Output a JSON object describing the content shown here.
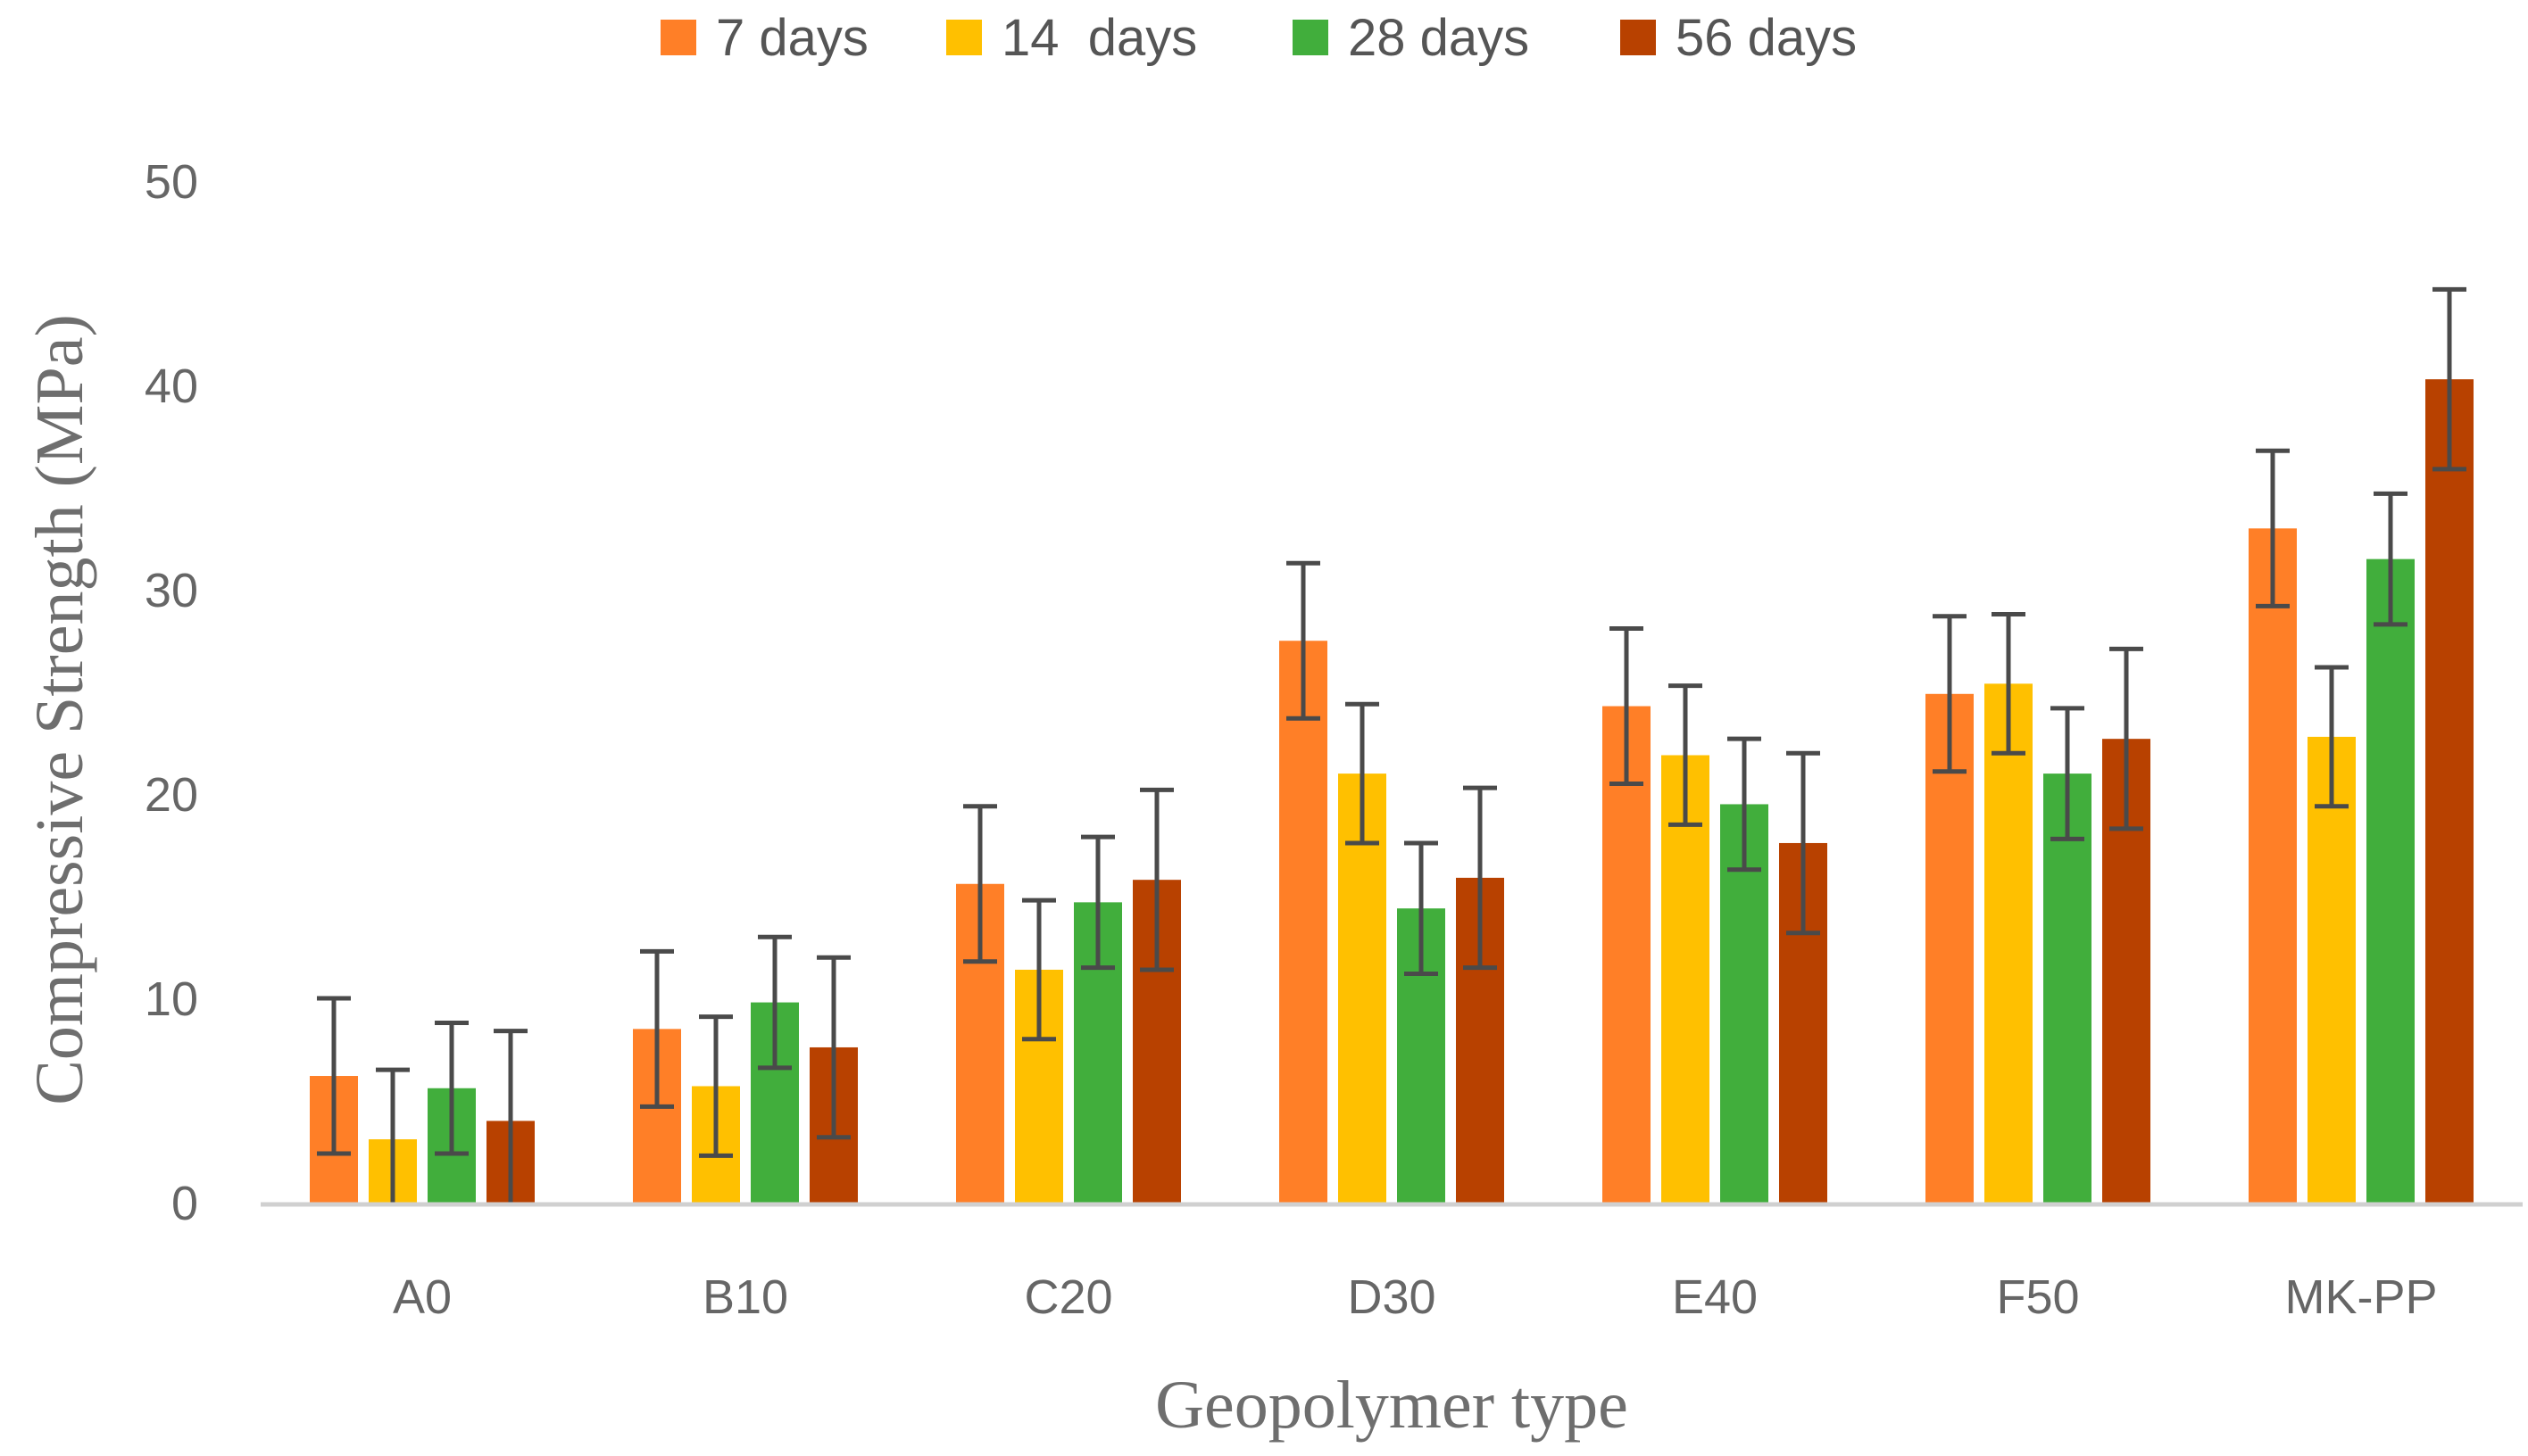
{
  "chart_data": {
    "type": "bar",
    "title": "",
    "xlabel": "Geopolymer type",
    "ylabel": "Compressive Strength (MPa)",
    "ylim": [
      0,
      50
    ],
    "yticks": [
      0,
      10,
      20,
      30,
      40,
      50
    ],
    "grid": false,
    "legend_position": "top-center",
    "categories": [
      "A0",
      "B10",
      "C20",
      "D30",
      "E40",
      "F50",
      "MK-PP"
    ],
    "series": [
      {
        "name": "7 days",
        "color": "#FF7F27",
        "values": [
          6.2,
          8.5,
          15.6,
          27.5,
          24.3,
          24.9,
          33.0
        ],
        "errors": [
          3.8,
          3.8,
          3.8,
          3.8,
          3.8,
          3.8,
          3.8
        ]
      },
      {
        "name": "14  days",
        "color": "#FFC000",
        "values": [
          3.1,
          5.7,
          11.4,
          21.0,
          21.9,
          25.4,
          22.8
        ],
        "errors": [
          3.4,
          3.4,
          3.4,
          3.4,
          3.4,
          3.4,
          3.4
        ]
      },
      {
        "name": "28 days",
        "color": "#41AE3C",
        "values": [
          5.6,
          9.8,
          14.7,
          14.4,
          19.5,
          21.0,
          31.5
        ],
        "errors": [
          3.2,
          3.2,
          3.2,
          3.2,
          3.2,
          3.2,
          3.2
        ]
      },
      {
        "name": "56 days",
        "color": "#B84100",
        "values": [
          4.0,
          7.6,
          15.8,
          15.9,
          17.6,
          22.7,
          40.3
        ],
        "errors": [
          4.4,
          4.4,
          4.4,
          4.4,
          4.4,
          4.4,
          4.4
        ]
      }
    ],
    "error_bar_color": "#4a4a4a",
    "axis_color": "#d0d0d0"
  }
}
